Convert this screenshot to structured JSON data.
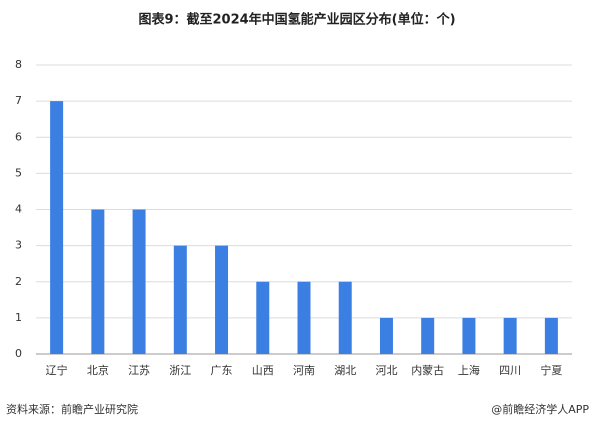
{
  "chart_data": {
    "type": "bar",
    "title": "图表9：截至2024年中国氢能产业园区分布(单位：个)",
    "categories": [
      "辽宁",
      "北京",
      "江苏",
      "浙江",
      "广东",
      "山西",
      "河南",
      "湖北",
      "河北",
      "内蒙古",
      "上海",
      "四川",
      "宁夏"
    ],
    "values": [
      7,
      4,
      4,
      3,
      3,
      2,
      2,
      2,
      1,
      1,
      1,
      1,
      1
    ],
    "color": "#3b7fe3",
    "ylim": [
      0,
      8
    ],
    "yticks": [
      0,
      1,
      2,
      3,
      4,
      5,
      6,
      7,
      8
    ],
    "grid": true,
    "source": "资料来源：前瞻产业研究院",
    "credit": "@前瞻经济学人APP"
  }
}
